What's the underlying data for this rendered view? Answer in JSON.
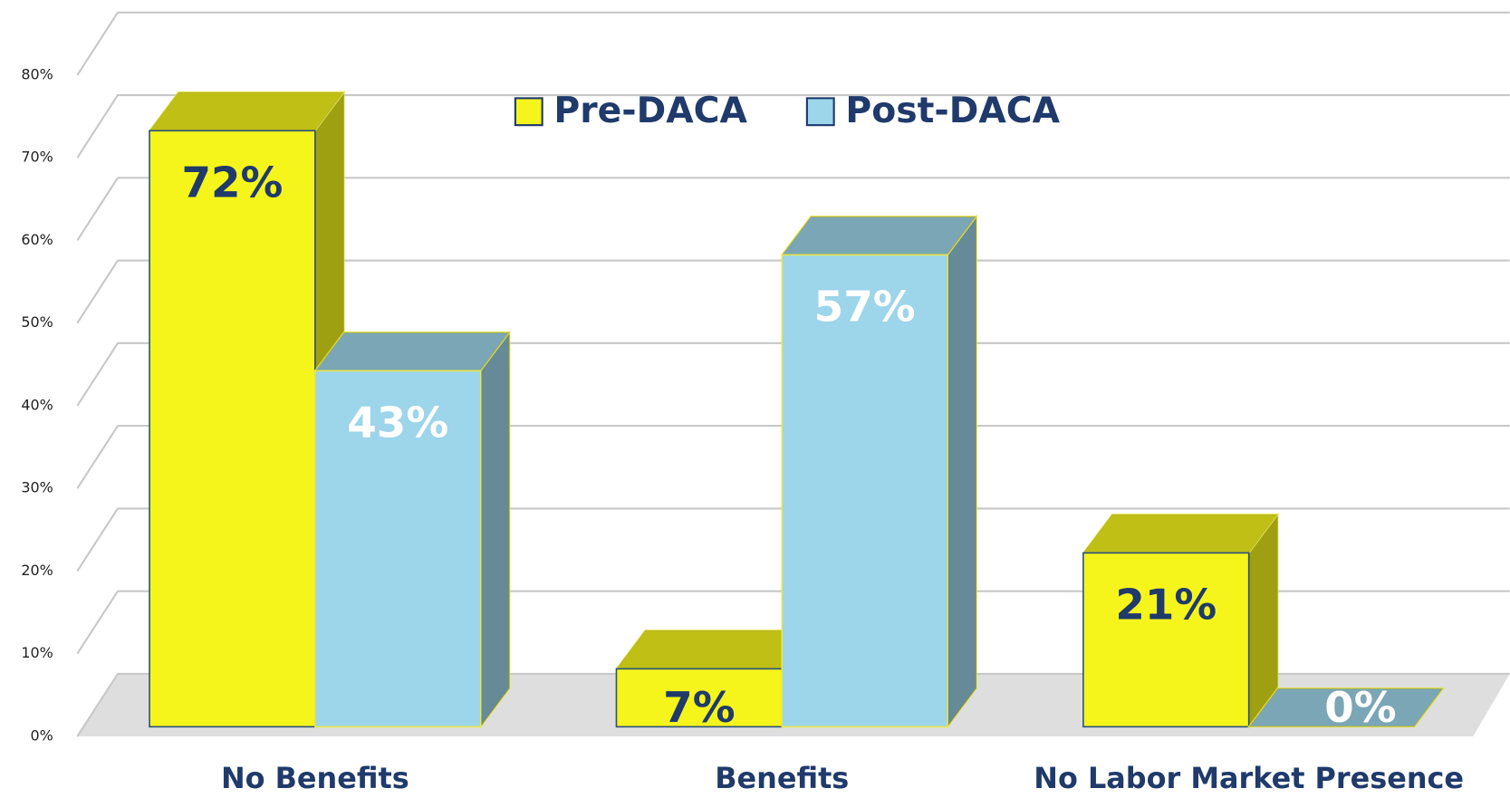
{
  "chart_data": {
    "type": "bar3d",
    "categories": [
      "No Benefits",
      "Benefits",
      "No Labor Market Presence"
    ],
    "series": [
      {
        "name": "Pre-DACA",
        "color": "#f5f51c",
        "values": [
          72,
          7,
          21
        ],
        "value_labels": [
          "72%",
          "7%",
          "21%"
        ]
      },
      {
        "name": "Post-DACA",
        "color": "#9dd5ea",
        "values": [
          43,
          57,
          0
        ],
        "value_labels": [
          "43%",
          "57%",
          "0%"
        ]
      }
    ],
    "ylim": [
      0,
      80
    ],
    "yticks": [
      {
        "value": 0,
        "label": "0%"
      },
      {
        "value": 10,
        "label": "10%"
      },
      {
        "value": 20,
        "label": "20%"
      },
      {
        "value": 30,
        "label": "30%"
      },
      {
        "value": 40,
        "label": "40%"
      },
      {
        "value": 50,
        "label": "50%"
      },
      {
        "value": 60,
        "label": "60%"
      },
      {
        "value": 70,
        "label": "70%"
      },
      {
        "value": 80,
        "label": "80%"
      }
    ],
    "grid": true
  }
}
